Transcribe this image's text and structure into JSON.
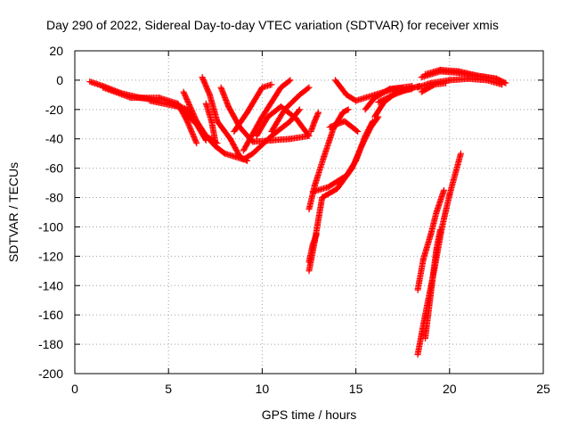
{
  "chart_data": {
    "type": "scatter",
    "title": "Day 290 of 2022, Sidereal Day-to-day VTEC variation (SDTVAR) for receiver xmis",
    "xlabel": "GPS time / hours",
    "ylabel": "SDTVAR / TECUs",
    "xlim": [
      0,
      25
    ],
    "ylim": [
      -200,
      20
    ],
    "xticks": [
      "0",
      "5",
      "10",
      "15",
      "20",
      "25"
    ],
    "yticks": [
      "20",
      "0",
      "-20",
      "-40",
      "-60",
      "-80",
      "-100",
      "-120",
      "-140",
      "-160",
      "-180",
      "-200"
    ],
    "grid": true,
    "marker": "+",
    "color": "#ff0000",
    "tracks": [
      [
        [
          0.8,
          -1
        ],
        [
          1.5,
          -4
        ],
        [
          2.5,
          -9
        ],
        [
          3.5,
          -12
        ],
        [
          4.5,
          -14
        ]
      ],
      [
        [
          1.5,
          -5
        ],
        [
          3.0,
          -12
        ],
        [
          4.5,
          -12
        ],
        [
          5.5,
          -16
        ],
        [
          6.0,
          -28
        ],
        [
          6.5,
          -43
        ]
      ],
      [
        [
          4.0,
          -14
        ],
        [
          5.5,
          -18
        ],
        [
          6.5,
          -30
        ],
        [
          7.0,
          -41
        ]
      ],
      [
        [
          5.0,
          -15
        ],
        [
          6.0,
          -20
        ],
        [
          7.0,
          -38
        ],
        [
          7.5,
          -45
        ],
        [
          8.0,
          -50
        ],
        [
          9.0,
          -54
        ],
        [
          9.5,
          -50
        ],
        [
          10.5,
          -38
        ],
        [
          11.5,
          -28
        ],
        [
          12.0,
          -20
        ]
      ],
      [
        [
          6.8,
          2
        ],
        [
          7.2,
          -10
        ],
        [
          7.6,
          -28
        ],
        [
          8.3,
          -40
        ],
        [
          8.8,
          -52
        ],
        [
          9.2,
          -55
        ]
      ],
      [
        [
          5.8,
          -8
        ],
        [
          6.5,
          -28
        ],
        [
          7.0,
          -38
        ],
        [
          7.6,
          -43
        ]
      ],
      [
        [
          7.0,
          -16
        ],
        [
          7.3,
          -28
        ],
        [
          7.5,
          -42
        ]
      ],
      [
        [
          7.8,
          -5
        ],
        [
          8.2,
          -18
        ],
        [
          8.8,
          -32
        ],
        [
          9.5,
          -42
        ],
        [
          10.5,
          -41
        ],
        [
          11.5,
          -40
        ],
        [
          12.5,
          -38
        ]
      ],
      [
        [
          8.5,
          -35
        ],
        [
          9.2,
          -22
        ],
        [
          10.0,
          -5
        ],
        [
          10.5,
          -3
        ]
      ],
      [
        [
          9.0,
          -48
        ],
        [
          10.0,
          -25
        ],
        [
          11.0,
          -5
        ],
        [
          11.5,
          0
        ]
      ],
      [
        [
          9.7,
          -38
        ],
        [
          10.3,
          -25
        ],
        [
          11.0,
          -18
        ],
        [
          11.8,
          -26
        ],
        [
          12.5,
          -38
        ]
      ],
      [
        [
          10.5,
          -35
        ],
        [
          11.2,
          -20
        ],
        [
          12.0,
          -10
        ],
        [
          12.5,
          -5
        ]
      ],
      [
        [
          12.6,
          -35
        ],
        [
          12.8,
          -28
        ],
        [
          13.0,
          -22
        ]
      ],
      [
        [
          12.5,
          -88
        ],
        [
          12.8,
          -72
        ],
        [
          13.3,
          -52
        ],
        [
          13.8,
          -33
        ],
        [
          14.3,
          -22
        ],
        [
          14.6,
          -20
        ]
      ],
      [
        [
          12.5,
          -130
        ],
        [
          12.8,
          -110
        ],
        [
          13.2,
          -80
        ],
        [
          14.0,
          -74
        ],
        [
          14.8,
          -60
        ],
        [
          15.3,
          -45
        ],
        [
          15.8,
          -32
        ],
        [
          16.2,
          -25
        ]
      ],
      [
        [
          12.7,
          -76
        ],
        [
          13.5,
          -73
        ],
        [
          14.5,
          -65
        ],
        [
          15.0,
          -55
        ],
        [
          15.5,
          -38
        ],
        [
          15.9,
          -28
        ]
      ],
      [
        [
          12.5,
          -124
        ],
        [
          12.7,
          -112
        ],
        [
          12.9,
          -105
        ]
      ],
      [
        [
          13.6,
          -32
        ],
        [
          14.4,
          -28
        ],
        [
          15.1,
          -35
        ]
      ],
      [
        [
          13.9,
          0
        ],
        [
          14.5,
          -10
        ],
        [
          15.0,
          -14
        ],
        [
          16.0,
          -10
        ],
        [
          17.0,
          -6
        ],
        [
          18.0,
          -4
        ]
      ],
      [
        [
          15.5,
          -20
        ],
        [
          16.0,
          -12
        ],
        [
          16.8,
          -6
        ],
        [
          17.5,
          -5
        ]
      ],
      [
        [
          16.0,
          -25
        ],
        [
          16.5,
          -15
        ],
        [
          17.2,
          -8
        ],
        [
          18.0,
          -6
        ]
      ],
      [
        [
          16.2,
          -15
        ],
        [
          17.0,
          -10
        ],
        [
          17.8,
          -6
        ],
        [
          18.4,
          -4
        ]
      ],
      [
        [
          18.3,
          -5
        ],
        [
          19.0,
          -2
        ],
        [
          20.0,
          0
        ],
        [
          21.0,
          1
        ],
        [
          22.0,
          0
        ],
        [
          22.8,
          -3
        ]
      ],
      [
        [
          18.5,
          2
        ],
        [
          19.5,
          6
        ],
        [
          20.5,
          5
        ],
        [
          21.5,
          3
        ],
        [
          22.5,
          1
        ],
        [
          23.0,
          -2
        ]
      ],
      [
        [
          18.7,
          4
        ],
        [
          19.5,
          7
        ],
        [
          20.5,
          6
        ],
        [
          21.5,
          3
        ],
        [
          22.5,
          1
        ]
      ],
      [
        [
          18.5,
          -8
        ],
        [
          19.2,
          -3
        ],
        [
          19.8,
          -2
        ]
      ],
      [
        [
          18.3,
          -187
        ],
        [
          18.7,
          -160
        ],
        [
          19.2,
          -128
        ],
        [
          19.6,
          -100
        ],
        [
          20.0,
          -78
        ],
        [
          20.6,
          -50
        ]
      ],
      [
        [
          18.3,
          -143
        ],
        [
          18.6,
          -122
        ],
        [
          19.0,
          -105
        ],
        [
          19.3,
          -90
        ],
        [
          19.7,
          -75
        ]
      ],
      [
        [
          18.7,
          -176
        ],
        [
          19.0,
          -145
        ],
        [
          19.3,
          -115
        ],
        [
          19.5,
          -102
        ]
      ]
    ]
  }
}
